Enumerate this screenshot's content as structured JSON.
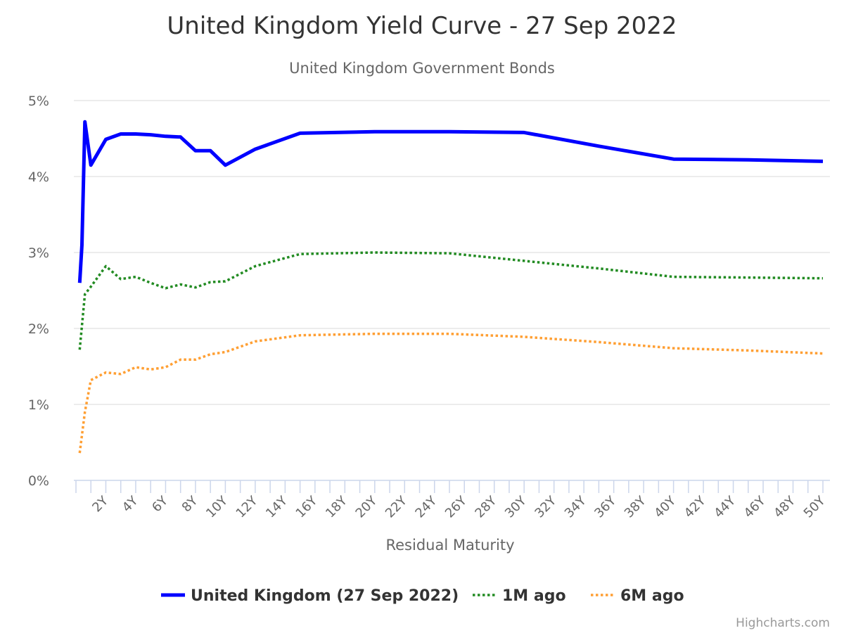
{
  "chart_data": {
    "type": "line",
    "title": "United Kingdom Yield Curve - 27 Sep 2022",
    "subtitle": "United Kingdom Government Bonds",
    "xlabel": "Residual Maturity",
    "ylabel": "",
    "xlim": [
      0,
      50
    ],
    "ylim": [
      0,
      5
    ],
    "y_ticks": [
      {
        "value": 0,
        "label": "0%"
      },
      {
        "value": 1,
        "label": "1%"
      },
      {
        "value": 2,
        "label": "2%"
      },
      {
        "value": 3,
        "label": "3%"
      },
      {
        "value": 4,
        "label": "4%"
      },
      {
        "value": 5,
        "label": "5%"
      }
    ],
    "x_ticks": [
      {
        "value": 2,
        "label": "2Y"
      },
      {
        "value": 4,
        "label": "4Y"
      },
      {
        "value": 6,
        "label": "6Y"
      },
      {
        "value": 8,
        "label": "8Y"
      },
      {
        "value": 10,
        "label": "10Y"
      },
      {
        "value": 12,
        "label": "12Y"
      },
      {
        "value": 14,
        "label": "14Y"
      },
      {
        "value": 16,
        "label": "16Y"
      },
      {
        "value": 18,
        "label": "18Y"
      },
      {
        "value": 20,
        "label": "20Y"
      },
      {
        "value": 22,
        "label": "22Y"
      },
      {
        "value": 24,
        "label": "24Y"
      },
      {
        "value": 26,
        "label": "26Y"
      },
      {
        "value": 28,
        "label": "28Y"
      },
      {
        "value": 30,
        "label": "30Y"
      },
      {
        "value": 32,
        "label": "32Y"
      },
      {
        "value": 34,
        "label": "34Y"
      },
      {
        "value": 36,
        "label": "36Y"
      },
      {
        "value": 38,
        "label": "38Y"
      },
      {
        "value": 40,
        "label": "40Y"
      },
      {
        "value": 42,
        "label": "42Y"
      },
      {
        "value": 44,
        "label": "44Y"
      },
      {
        "value": 46,
        "label": "46Y"
      },
      {
        "value": 48,
        "label": "48Y"
      },
      {
        "value": 50,
        "label": "50Y"
      }
    ],
    "grid": true,
    "legend_position": "bottom-center",
    "series": [
      {
        "name": "United Kingdom (27 Sep 2022)",
        "color": "#0000ff",
        "dash": "solid",
        "points": [
          [
            0.25,
            2.6
          ],
          [
            0.4,
            3.1
          ],
          [
            0.6,
            4.72
          ],
          [
            1,
            4.15
          ],
          [
            2,
            4.49
          ],
          [
            3,
            4.56
          ],
          [
            4,
            4.56
          ],
          [
            5,
            4.55
          ],
          [
            6,
            4.53
          ],
          [
            7,
            4.52
          ],
          [
            8,
            4.34
          ],
          [
            9,
            4.34
          ],
          [
            10,
            4.15
          ],
          [
            12,
            4.36
          ],
          [
            15,
            4.57
          ],
          [
            20,
            4.59
          ],
          [
            25,
            4.59
          ],
          [
            30,
            4.58
          ],
          [
            35,
            4.4
          ],
          [
            40,
            4.23
          ],
          [
            45,
            4.22
          ],
          [
            50,
            4.2
          ]
        ]
      },
      {
        "name": "1M ago",
        "color": "#228b22",
        "dash": "dotted",
        "points": [
          [
            0.25,
            1.72
          ],
          [
            0.6,
            2.45
          ],
          [
            1,
            2.55
          ],
          [
            2,
            2.82
          ],
          [
            3,
            2.65
          ],
          [
            4,
            2.68
          ],
          [
            5,
            2.6
          ],
          [
            6,
            2.53
          ],
          [
            7,
            2.58
          ],
          [
            8,
            2.54
          ],
          [
            9,
            2.61
          ],
          [
            10,
            2.62
          ],
          [
            12,
            2.82
          ],
          [
            15,
            2.98
          ],
          [
            20,
            3.0
          ],
          [
            25,
            2.99
          ],
          [
            30,
            2.89
          ],
          [
            35,
            2.79
          ],
          [
            40,
            2.68
          ],
          [
            45,
            2.67
          ],
          [
            50,
            2.66
          ]
        ]
      },
      {
        "name": "6M ago",
        "color": "#ff9f33",
        "dash": "dotted",
        "points": [
          [
            0.25,
            0.36
          ],
          [
            0.6,
            0.9
          ],
          [
            1,
            1.32
          ],
          [
            2,
            1.42
          ],
          [
            3,
            1.4
          ],
          [
            4,
            1.49
          ],
          [
            5,
            1.46
          ],
          [
            6,
            1.49
          ],
          [
            7,
            1.59
          ],
          [
            8,
            1.59
          ],
          [
            9,
            1.66
          ],
          [
            10,
            1.69
          ],
          [
            12,
            1.83
          ],
          [
            15,
            1.91
          ],
          [
            20,
            1.93
          ],
          [
            25,
            1.93
          ],
          [
            30,
            1.89
          ],
          [
            35,
            1.82
          ],
          [
            40,
            1.74
          ],
          [
            45,
            1.71
          ],
          [
            50,
            1.67
          ]
        ]
      }
    ]
  },
  "credits": "Highcharts.com"
}
